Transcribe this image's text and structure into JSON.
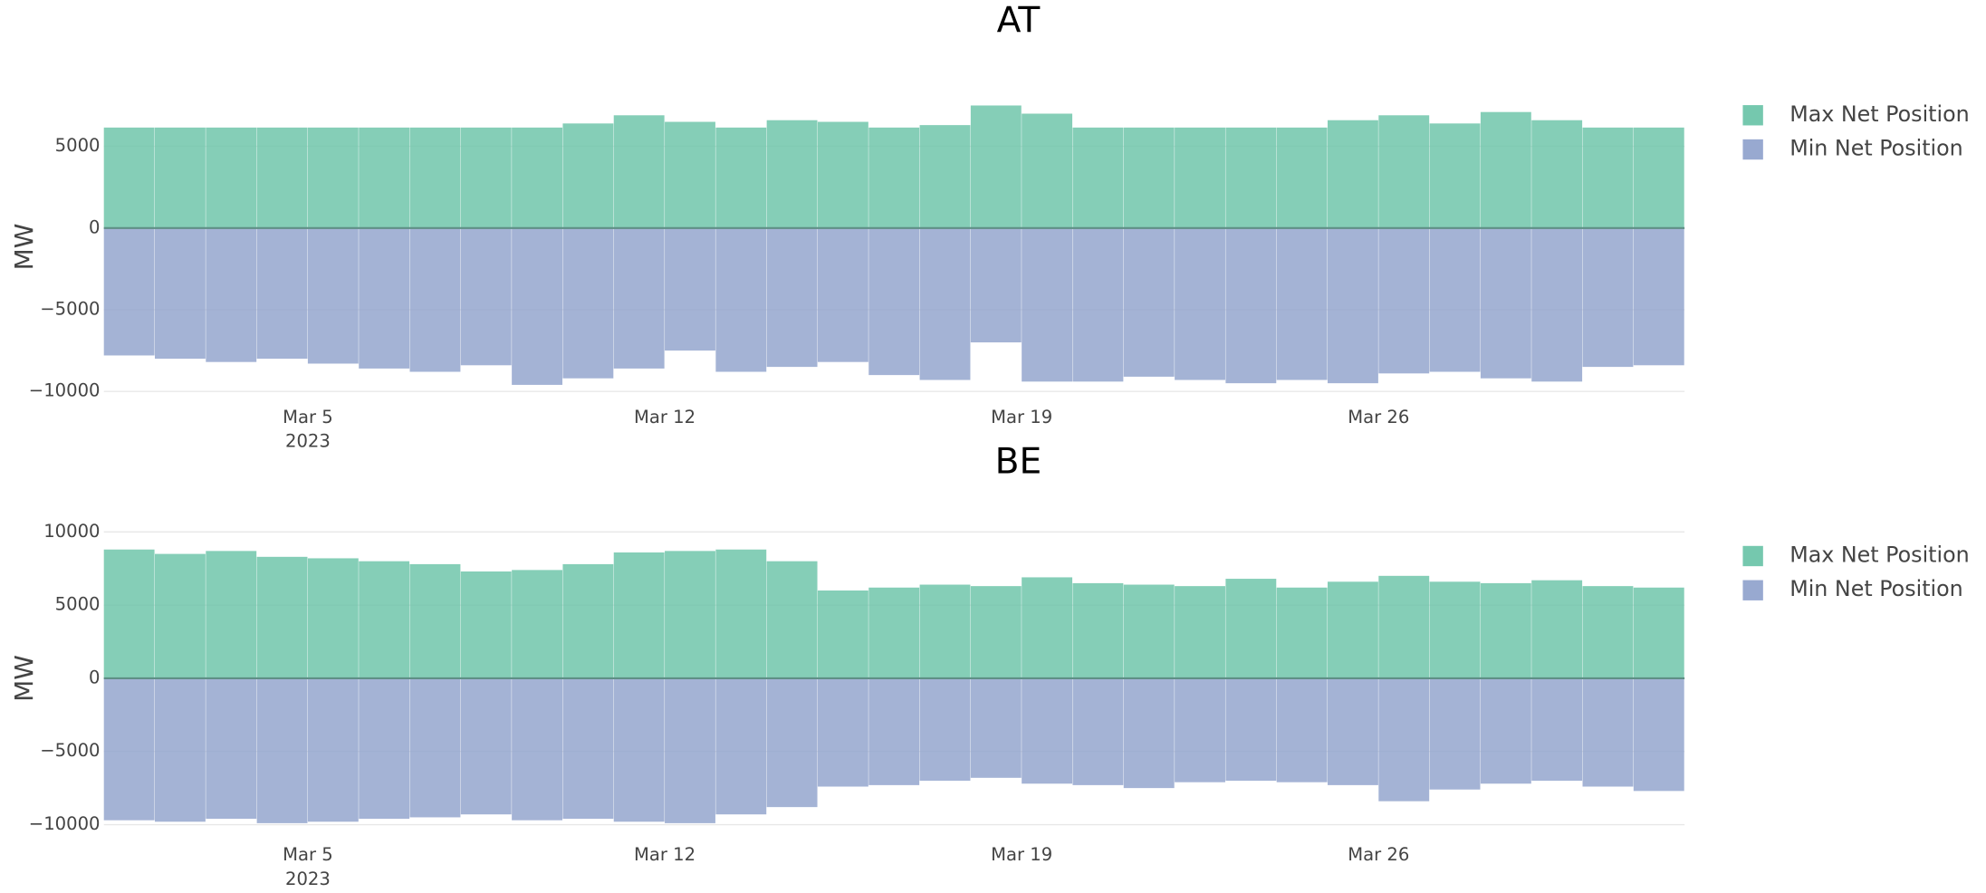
{
  "chart_data": [
    {
      "type": "bar",
      "title": "AT",
      "ylabel": "MW",
      "legend": "right",
      "grid": true,
      "x": [
        "2023-03-01",
        "2023-03-02",
        "2023-03-03",
        "2023-03-04",
        "2023-03-05",
        "2023-03-06",
        "2023-03-07",
        "2023-03-08",
        "2023-03-09",
        "2023-03-10",
        "2023-03-11",
        "2023-03-12",
        "2023-03-13",
        "2023-03-14",
        "2023-03-15",
        "2023-03-16",
        "2023-03-17",
        "2023-03-18",
        "2023-03-19",
        "2023-03-20",
        "2023-03-21",
        "2023-03-22",
        "2023-03-23",
        "2023-03-24",
        "2023-03-25",
        "2023-03-26",
        "2023-03-27",
        "2023-03-28",
        "2023-03-29",
        "2023-03-30",
        "2023-03-31"
      ],
      "series": [
        {
          "name": "Max Net Position",
          "color": "#66c2a5",
          "values": [
            6150,
            6150,
            6150,
            6150,
            6150,
            6150,
            6150,
            6150,
            6150,
            6400,
            6900,
            6500,
            6150,
            6600,
            6500,
            6150,
            6300,
            7500,
            7000,
            6150,
            6150,
            6150,
            6150,
            6150,
            6600,
            6900,
            6400,
            7100,
            6600,
            6150,
            6150
          ]
        },
        {
          "name": "Min Net Position",
          "color": "#8da0cb",
          "values": [
            -7800,
            -8000,
            -8200,
            -8000,
            -8300,
            -8600,
            -8800,
            -8400,
            -9600,
            -9200,
            -8600,
            -7500,
            -8800,
            -8500,
            -8200,
            -9000,
            -9300,
            -7000,
            -9400,
            -9400,
            -9100,
            -9300,
            -9500,
            -9300,
            -9500,
            -8900,
            -8800,
            -9200,
            -9400,
            -8500,
            -8400
          ]
        }
      ],
      "xlim": [
        "2023-03-01",
        "2023-04-01"
      ],
      "xticks": [
        {
          "value": "2023-03-05",
          "label": "Mar 5"
        },
        {
          "value": "2023-03-12",
          "label": "Mar 12"
        },
        {
          "value": "2023-03-19",
          "label": "Mar 19"
        },
        {
          "value": "2023-03-26",
          "label": "Mar 26"
        }
      ],
      "x_year_label": "2023",
      "ylim": [
        -10000,
        7700
      ],
      "yticks": [
        {
          "value": -10000,
          "label": "−10000"
        },
        {
          "value": -5000,
          "label": "−5000"
        },
        0,
        5000
      ]
    },
    {
      "type": "bar",
      "title": "BE",
      "ylabel": "MW",
      "legend": "right",
      "grid": true,
      "x": [
        "2023-03-01",
        "2023-03-02",
        "2023-03-03",
        "2023-03-04",
        "2023-03-05",
        "2023-03-06",
        "2023-03-07",
        "2023-03-08",
        "2023-03-09",
        "2023-03-10",
        "2023-03-11",
        "2023-03-12",
        "2023-03-13",
        "2023-03-14",
        "2023-03-15",
        "2023-03-16",
        "2023-03-17",
        "2023-03-18",
        "2023-03-19",
        "2023-03-20",
        "2023-03-21",
        "2023-03-22",
        "2023-03-23",
        "2023-03-24",
        "2023-03-25",
        "2023-03-26",
        "2023-03-27",
        "2023-03-28",
        "2023-03-29",
        "2023-03-30",
        "2023-03-31"
      ],
      "series": [
        {
          "name": "Max Net Position",
          "color": "#66c2a5",
          "values": [
            8800,
            8500,
            8700,
            8300,
            8200,
            8000,
            7800,
            7300,
            7400,
            7800,
            8600,
            8700,
            8800,
            8000,
            6000,
            6200,
            6400,
            6300,
            6900,
            6500,
            6400,
            6300,
            6800,
            6200,
            6600,
            7000,
            6600,
            6500,
            6700,
            6300,
            6200
          ]
        },
        {
          "name": "Min Net Position",
          "color": "#8da0cb",
          "values": [
            -9700,
            -9800,
            -9600,
            -9900,
            -9800,
            -9600,
            -9500,
            -9300,
            -9700,
            -9600,
            -9800,
            -9900,
            -9300,
            -8800,
            -7400,
            -7300,
            -7000,
            -6800,
            -7200,
            -7300,
            -7500,
            -7100,
            -7000,
            -7100,
            -7300,
            -8400,
            -7600,
            -7200,
            -7000,
            -7400,
            -7700
          ]
        }
      ],
      "xlim": [
        "2023-03-01",
        "2023-04-01"
      ],
      "xticks": [
        {
          "value": "2023-03-05",
          "label": "Mar 5"
        },
        {
          "value": "2023-03-12",
          "label": "Mar 12"
        },
        {
          "value": "2023-03-19",
          "label": "Mar 19"
        },
        {
          "value": "2023-03-26",
          "label": "Mar 26"
        }
      ],
      "x_year_label": "2023",
      "ylim": [
        -10300,
        10300
      ],
      "yticks": [
        {
          "value": -10000,
          "label": "−10000"
        },
        {
          "value": -5000,
          "label": "−5000"
        },
        0,
        5000,
        10000
      ]
    }
  ]
}
